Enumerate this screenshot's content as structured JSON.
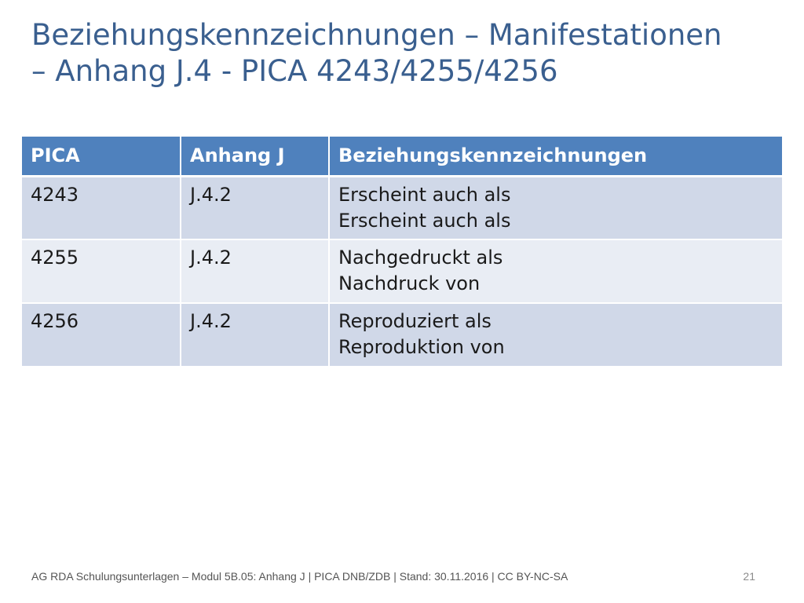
{
  "slide": {
    "title_line1": "Beziehungskennzeichnungen – Manifestationen",
    "title_line2": "– Anhang J.4 - PICA 4243/4255/4256"
  },
  "table": {
    "headers": [
      "PICA",
      "Anhang J",
      "Beziehungskennzeichnungen"
    ],
    "rows": [
      {
        "pica": "4243",
        "anhang": "J.4.2",
        "line1": "Erscheint auch als",
        "line2": "Erscheint auch als"
      },
      {
        "pica": "4255",
        "anhang": "J.4.2",
        "line1": "Nachgedruckt als",
        "line2": "Nachdruck von"
      },
      {
        "pica": "4256",
        "anhang": "J.4.2",
        "line1": "Reproduziert als",
        "line2": "Reproduktion von"
      }
    ]
  },
  "footer": {
    "text": "AG RDA Schulungsunterlagen – Modul 5B.05: Anhang J | PICA DNB/ZDB | Stand: 30.11.2016 | CC BY-NC-SA",
    "page_number": "21"
  },
  "colors": {
    "title": "#3a5f8f",
    "header_bg": "#4f81bd",
    "row_odd": "#d0d8e8",
    "row_even": "#e9edf4"
  }
}
